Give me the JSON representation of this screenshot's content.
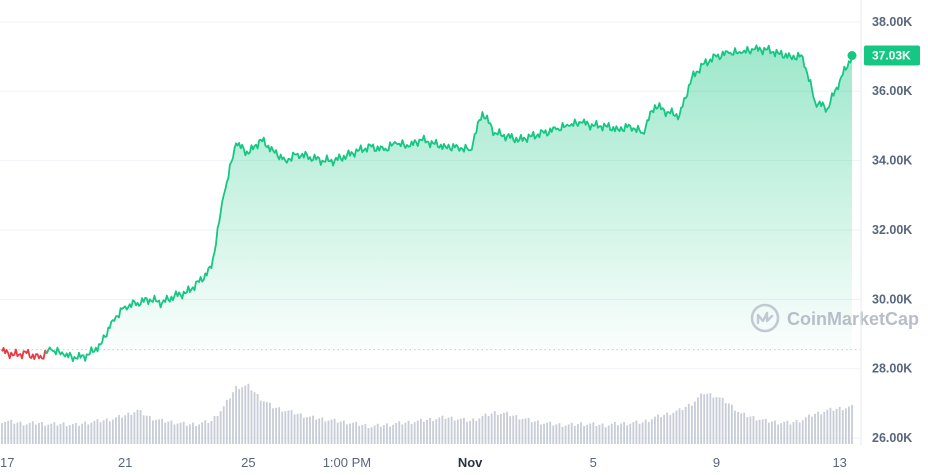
{
  "chart_data": {
    "type": "area",
    "y_axis": {
      "range": [
        25800,
        38400
      ],
      "ticks": [
        {
          "value": 38000,
          "label": "38.00K"
        },
        {
          "value": 36000,
          "label": "36.00K"
        },
        {
          "value": 34000,
          "label": "34.00K"
        },
        {
          "value": 32000,
          "label": "32.00K"
        },
        {
          "value": 30000,
          "label": "30.00K"
        },
        {
          "value": 28000,
          "label": "28.00K"
        },
        {
          "value": 26000,
          "label": "26.00K"
        }
      ]
    },
    "x_axis": {
      "ticks": [
        {
          "index": 0,
          "label": "17",
          "bold": false
        },
        {
          "index": 10,
          "label": "21",
          "bold": false
        },
        {
          "index": 20,
          "label": "25",
          "bold": false
        },
        {
          "index": 28,
          "label": "1:00 PM",
          "bold": false
        },
        {
          "index": 38,
          "label": "Nov",
          "bold": true
        },
        {
          "index": 48,
          "label": "5",
          "bold": false
        },
        {
          "index": 58,
          "label": "9",
          "bold": false
        },
        {
          "index": 68,
          "label": "13",
          "bold": false
        }
      ]
    },
    "baseline_value": 28550,
    "series": [
      {
        "values": [
          28500,
          28400,
          28450,
          28300,
          28550,
          28400,
          28300,
          28400,
          28700,
          29400,
          29800,
          29900,
          30000,
          29900,
          30100,
          30200,
          30500,
          30900,
          33000,
          34500,
          34200,
          34600,
          34300,
          34000,
          34200,
          34100,
          34000,
          34000,
          34150,
          34300,
          34400,
          34300,
          34500,
          34400,
          34600,
          34500,
          34400,
          34400,
          34300,
          35400,
          34800,
          34700,
          34600,
          34700,
          34800,
          34900,
          35000,
          35100,
          35000,
          35000,
          34900,
          35000,
          34800,
          35600,
          35400,
          35300,
          36400,
          36800,
          37000,
          37100,
          37100,
          37200,
          37200,
          37100,
          37000,
          37000,
          35700,
          35500,
          36300,
          37030
        ],
        "color_up": "#16c784",
        "color_down": "#ea3943"
      }
    ],
    "volume": [
      0.3,
      0.28,
      0.26,
      0.27,
      0.25,
      0.26,
      0.24,
      0.28,
      0.3,
      0.33,
      0.38,
      0.45,
      0.35,
      0.3,
      0.28,
      0.25,
      0.26,
      0.3,
      0.5,
      0.78,
      0.8,
      0.62,
      0.5,
      0.45,
      0.4,
      0.35,
      0.33,
      0.3,
      0.28,
      0.25,
      0.22,
      0.24,
      0.26,
      0.28,
      0.3,
      0.33,
      0.35,
      0.33,
      0.3,
      0.36,
      0.42,
      0.4,
      0.35,
      0.3,
      0.27,
      0.25,
      0.24,
      0.26,
      0.25,
      0.24,
      0.26,
      0.27,
      0.28,
      0.35,
      0.4,
      0.45,
      0.55,
      0.7,
      0.65,
      0.55,
      0.4,
      0.35,
      0.3,
      0.28,
      0.27,
      0.32,
      0.4,
      0.45,
      0.48,
      0.5
    ],
    "current_price_label": "37.03K"
  },
  "watermark": {
    "label": "CoinMarketCap",
    "icon": "coinmarketcap-logo-icon"
  },
  "colors": {
    "up": "#16c784",
    "down": "#ea3943",
    "volume": "#c7ccd6",
    "grid": "#eff2f5",
    "axis_text": "#58667e"
  }
}
